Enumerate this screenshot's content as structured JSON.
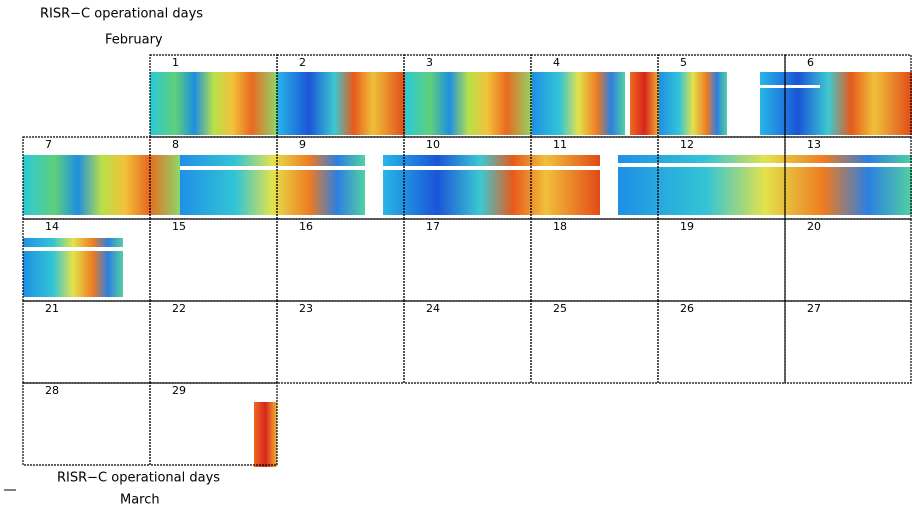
{
  "header": {
    "title": "RISR−C operational days",
    "month": "February"
  },
  "days": [
    1,
    2,
    3,
    4,
    5,
    6,
    7,
    8,
    9,
    10,
    11,
    12,
    13,
    14,
    15,
    16,
    17,
    18,
    19,
    20,
    21,
    22,
    23,
    24,
    25,
    26,
    27,
    28,
    29
  ],
  "footer": {
    "title": "RISR−C operational days",
    "month": "March"
  }
}
